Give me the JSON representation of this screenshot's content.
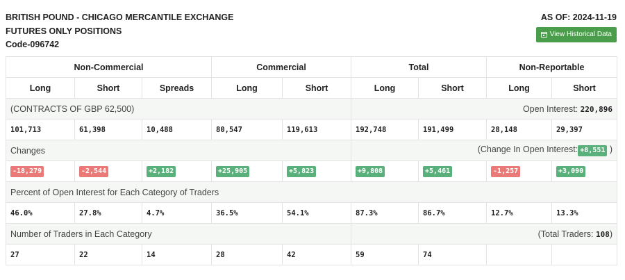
{
  "header": {
    "title_line1": "BRITISH POUND - CHICAGO MERCANTILE EXCHANGE",
    "title_line2": "FUTURES ONLY POSITIONS",
    "code": "Code-096742",
    "as_of": "AS OF: 2024-11-19",
    "history_button": "View Historical Data"
  },
  "groups": [
    "Non-Commercial",
    "Commercial",
    "Total",
    "Non-Reportable"
  ],
  "subheaders": [
    "Long",
    "Short",
    "Spreads",
    "Long",
    "Short",
    "Long",
    "Short",
    "Long",
    "Short"
  ],
  "contracts": {
    "label": "(CONTRACTS OF GBP 62,500)",
    "open_interest_label": "Open Interest:",
    "open_interest_value": "220,896",
    "values": [
      "101,713",
      "61,398",
      "10,488",
      "80,547",
      "119,613",
      "192,748",
      "191,499",
      "28,148",
      "29,397"
    ]
  },
  "changes": {
    "label": "Changes",
    "change_oi_prefix": "(Change In Open Interest:",
    "change_oi_value": "+8,551",
    "change_oi_suffix": ")",
    "values": [
      "-18,279",
      "-2,544",
      "+2,182",
      "+25,905",
      "+5,823",
      "+9,808",
      "+5,461",
      "-1,257",
      "+3,090"
    ]
  },
  "percent": {
    "label": "Percent of Open Interest for Each Category of Traders",
    "values": [
      "46.0%",
      "27.8%",
      "4.7%",
      "36.5%",
      "54.1%",
      "87.3%",
      "86.7%",
      "12.7%",
      "13.3%"
    ]
  },
  "traders": {
    "label": "Number of Traders in Each Category",
    "total_prefix": "(Total Traders:",
    "total_value": "108",
    "total_suffix": ")",
    "values": [
      "27",
      "22",
      "14",
      "28",
      "42",
      "59",
      "74",
      "",
      ""
    ]
  },
  "colors": {
    "positive": "#5ab07a",
    "negative": "#e97a77",
    "button": "#4a9d4a"
  }
}
